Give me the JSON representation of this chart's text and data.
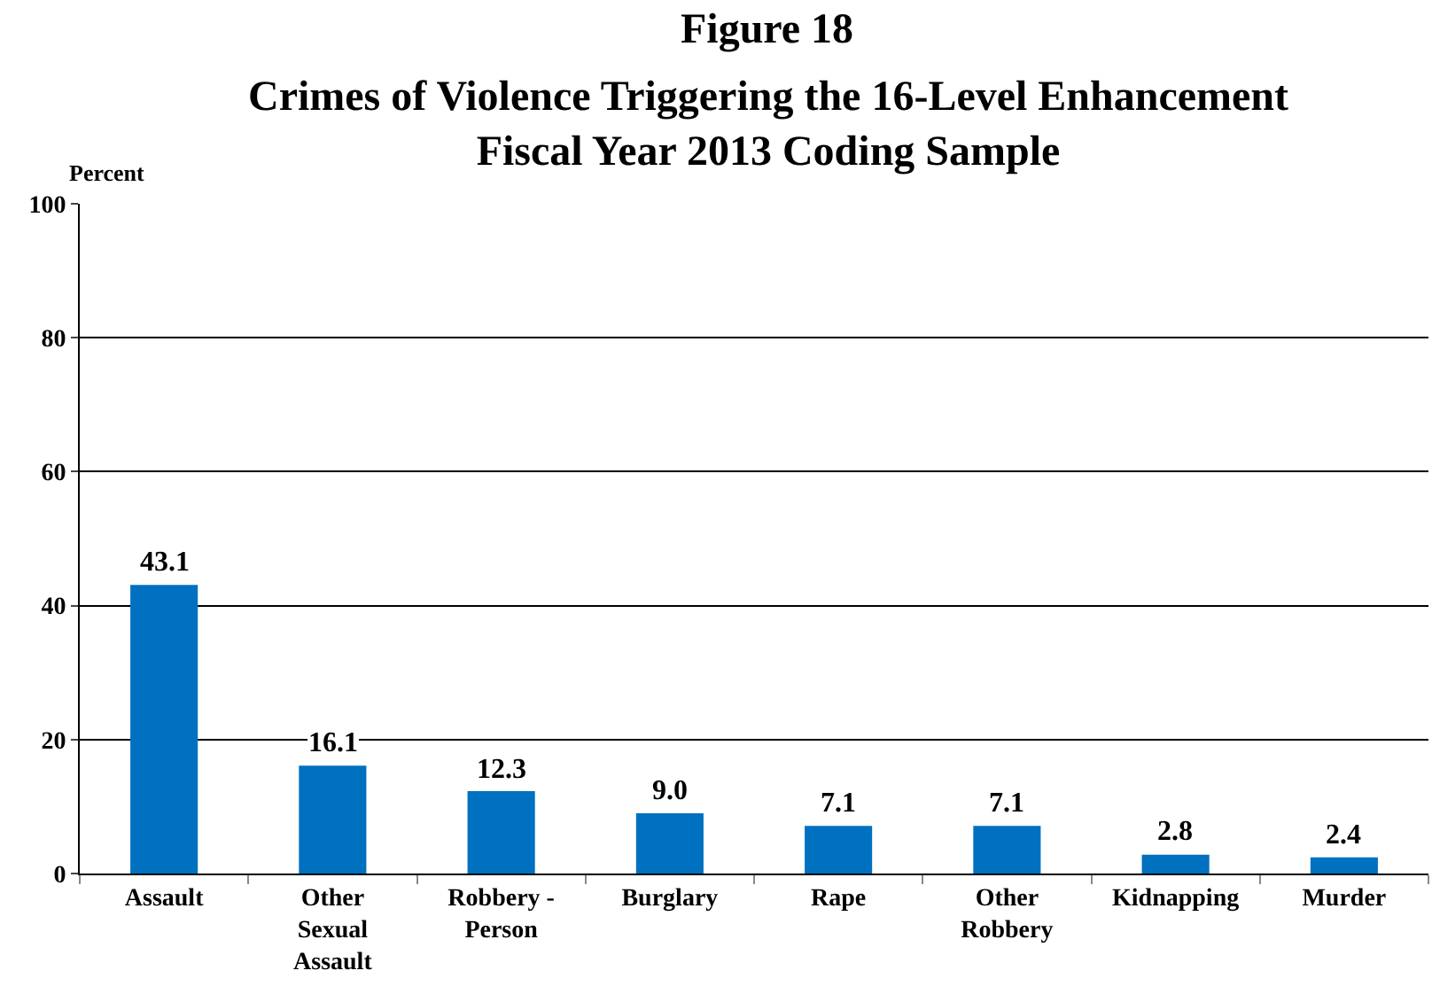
{
  "chart_data": {
    "type": "bar",
    "title": "Figure 18",
    "subtitle": "Crimes of Violence Triggering the 16-Level Enhancement Fiscal Year 2013 Coding Sample",
    "ylabel": "Percent",
    "categories": [
      "Assault",
      "Other Sexual Assault",
      "Robbery - Person",
      "Burglary",
      "Rape",
      "Other Robbery",
      "Kidnapping",
      "Murder"
    ],
    "values": [
      43.1,
      16.1,
      12.3,
      9.0,
      7.1,
      7.1,
      2.8,
      2.4
    ],
    "value_labels": [
      "43.1",
      "16.1",
      "12.3",
      "9.0",
      "7.1",
      "7.1",
      "2.8",
      "2.4"
    ],
    "color": "#0070c0",
    "ylim": [
      0,
      100
    ],
    "yticks": [
      0,
      20,
      40,
      60,
      80,
      100
    ],
    "grid": "y"
  }
}
